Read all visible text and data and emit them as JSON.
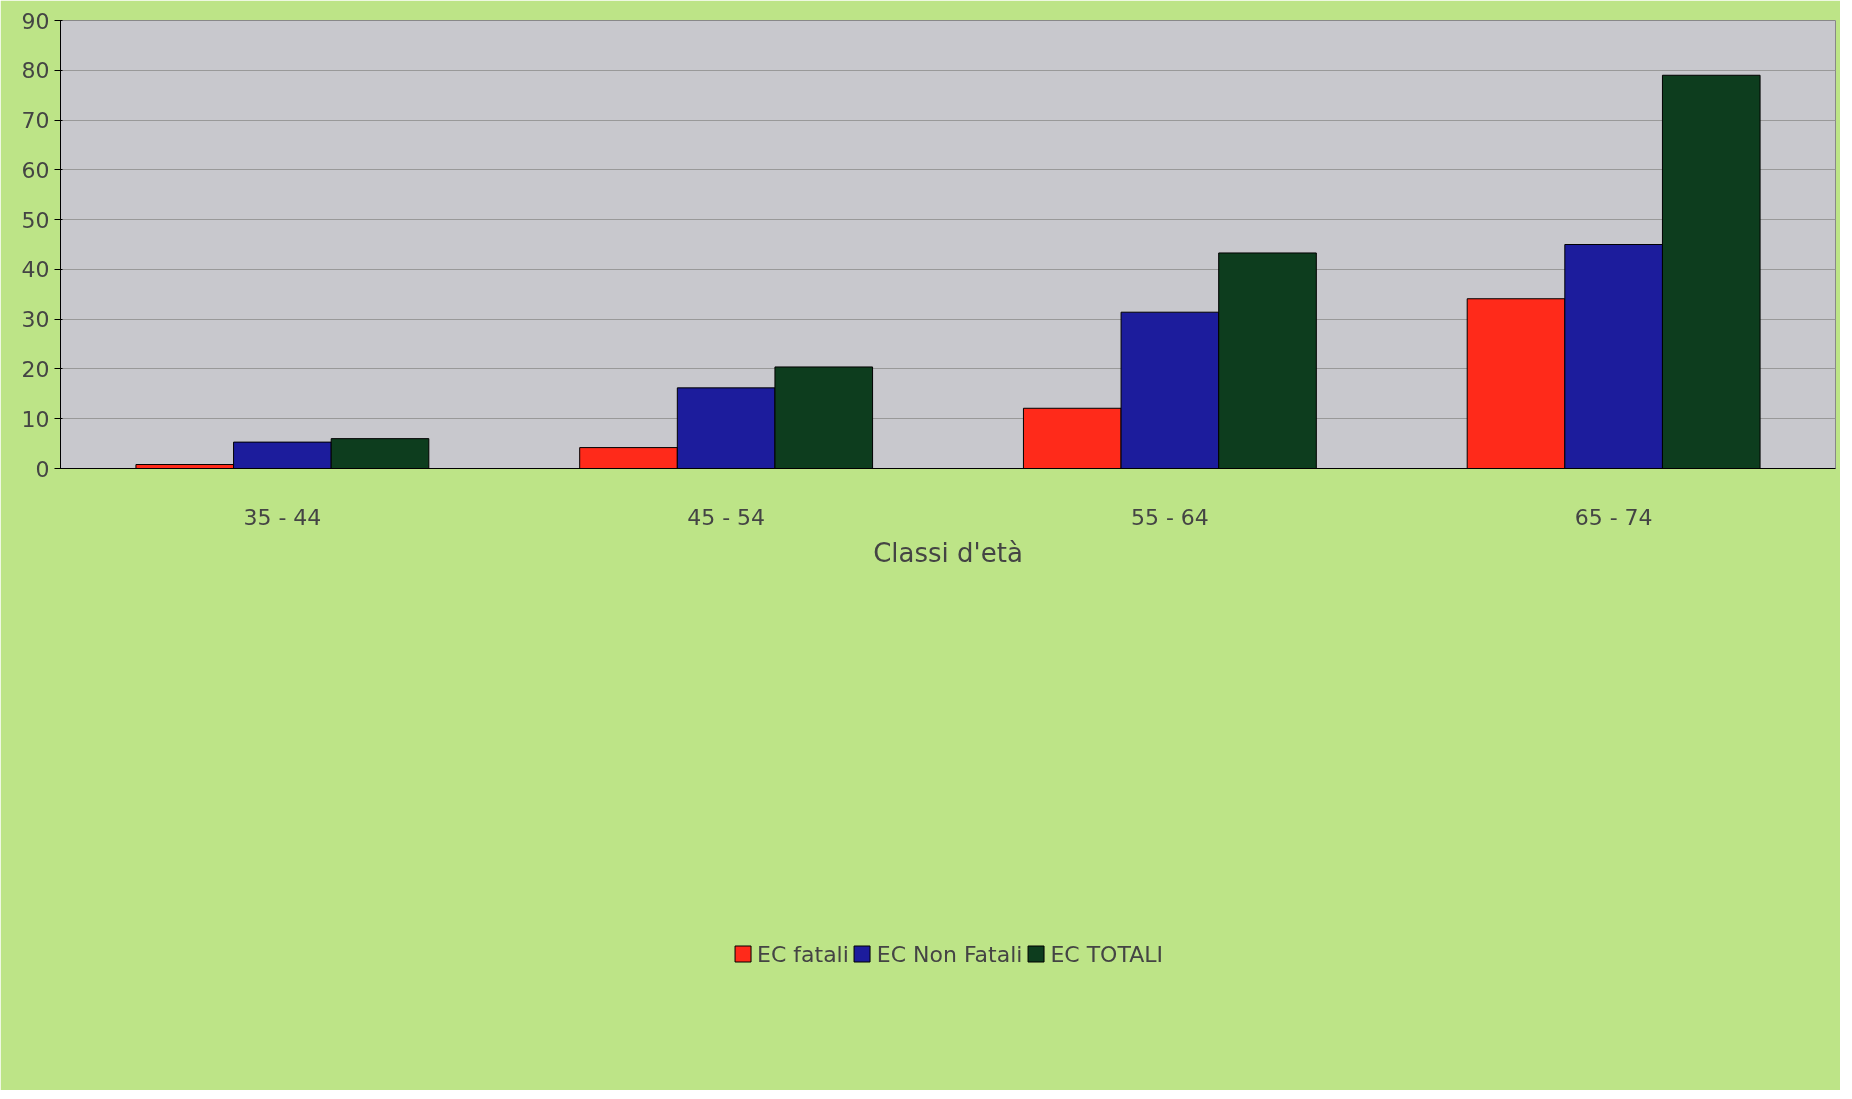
{
  "chart_data": {
    "type": "bar",
    "xlabel": "Classi d'età",
    "categories": [
      "35 - 44",
      "45 - 54",
      "55 - 64",
      "65 - 74"
    ],
    "series": [
      {
        "name": "EC fatali",
        "color": "#ff2a1a",
        "values": [
          0.8,
          4.2,
          12.1,
          34.1
        ]
      },
      {
        "name": "EC Non Fatali",
        "color": "#1c1c9c",
        "values": [
          5.3,
          16.2,
          31.4,
          45.0
        ]
      },
      {
        "name": "EC TOTALI",
        "color": "#0d3d1e",
        "values": [
          6.0,
          20.4,
          43.3,
          79.0
        ]
      }
    ],
    "ylim": [
      0,
      90
    ],
    "yticks": [
      0,
      10,
      20,
      30,
      40,
      50,
      60,
      70,
      80,
      90
    ],
    "grid": "y",
    "legend": "bottom"
  }
}
